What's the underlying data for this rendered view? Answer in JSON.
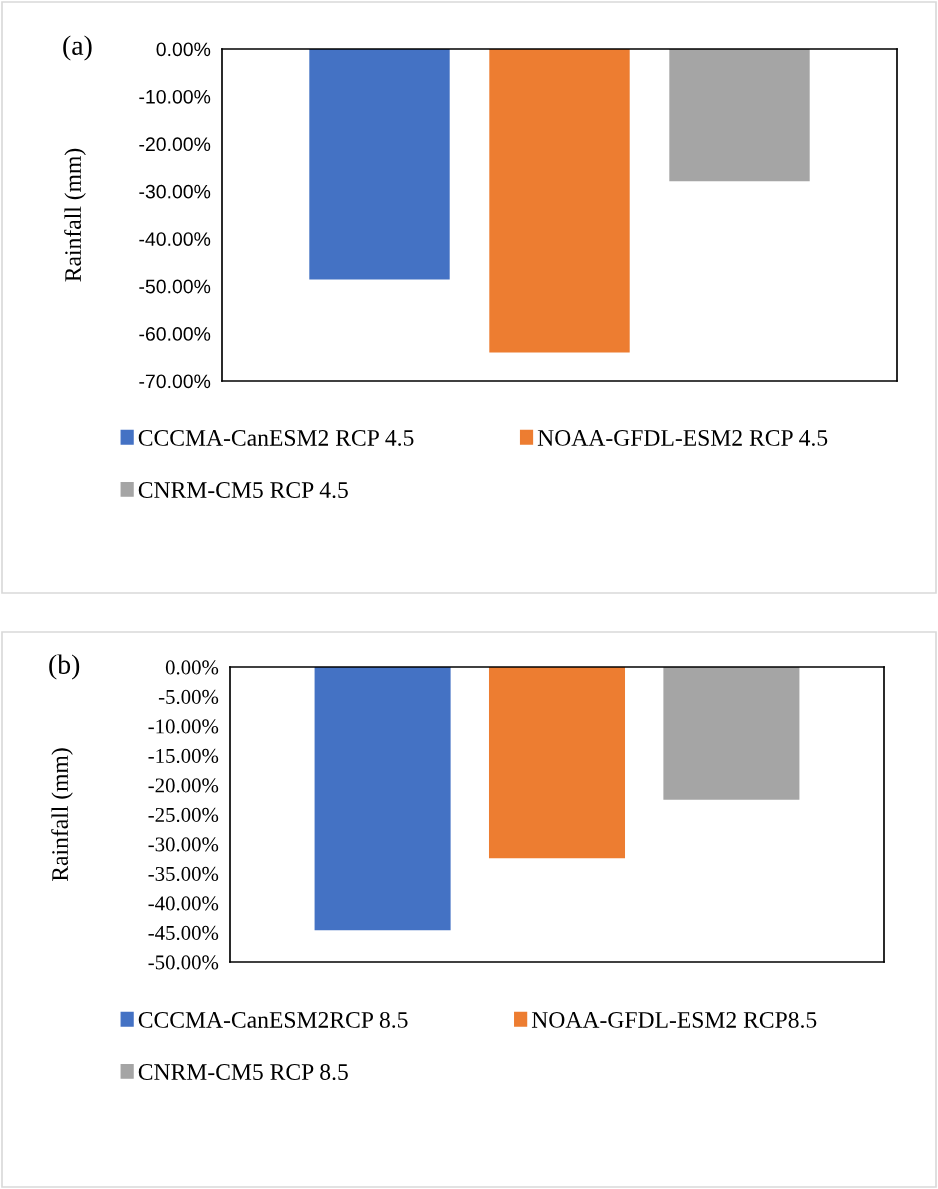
{
  "chart_data": [
    {
      "type": "bar",
      "ylabel": "Rainfall (mm)",
      "annotations": [
        "(a)"
      ],
      "categories": [
        null
      ],
      "series": [
        {
          "name": "CCCMA-CanESM2 RCP 4.5",
          "color": "#4472c4",
          "values": [
            -48.6
          ]
        },
        {
          "name": "NOAA-GFDL-ESM2 RCP 4.5",
          "color": "#ed7d31",
          "values": [
            -64.0
          ]
        },
        {
          "name": "CNRM-CM5 RCP 4.5",
          "color": "#a5a5a5",
          "values": [
            -27.9
          ]
        }
      ],
      "ylim": [
        -70,
        0
      ],
      "yticks": [
        {
          "value": -70,
          "label": "-70.00%"
        },
        {
          "value": -60,
          "label": "-60.00%"
        },
        {
          "value": -50,
          "label": "-50.00%"
        },
        {
          "value": -40,
          "label": "-40.00%"
        },
        {
          "value": -30,
          "label": "-30.00%"
        },
        {
          "value": -20,
          "label": "-20.00%"
        },
        {
          "value": -10,
          "label": "-10.00%"
        },
        {
          "value": 0,
          "label": "0.00%"
        }
      ],
      "grid": false,
      "legend": "bottom"
    },
    {
      "type": "bar",
      "ylabel": "Rainfall (mm)",
      "annotations": [
        "(b)"
      ],
      "categories": [
        null
      ],
      "series": [
        {
          "name": "CCCMA-CanESM2RCP 8.5",
          "color": "#4472c4",
          "values": [
            -44.6
          ]
        },
        {
          "name": "NOAA-GFDL-ESM2 RCP8.5",
          "color": "#ed7d31",
          "values": [
            -32.4
          ]
        },
        {
          "name": "CNRM-CM5 RCP 8.5",
          "color": "#a5a5a5",
          "values": [
            -22.5
          ]
        }
      ],
      "ylim": [
        -50,
        0
      ],
      "yticks": [
        {
          "value": -50,
          "label": "-50.00%"
        },
        {
          "value": -45,
          "label": "-45.00%"
        },
        {
          "value": -40,
          "label": "-40.00%"
        },
        {
          "value": -35,
          "label": "-35.00%"
        },
        {
          "value": -30,
          "label": "-30.00%"
        },
        {
          "value": -25,
          "label": "-25.00%"
        },
        {
          "value": -20,
          "label": "-20.00%"
        },
        {
          "value": -15,
          "label": "-15.00%"
        },
        {
          "value": -10,
          "label": "-10.00%"
        },
        {
          "value": -5,
          "label": "-5.00%"
        },
        {
          "value": 0,
          "label": "0.00%"
        }
      ],
      "grid": false,
      "legend": "bottom"
    }
  ]
}
